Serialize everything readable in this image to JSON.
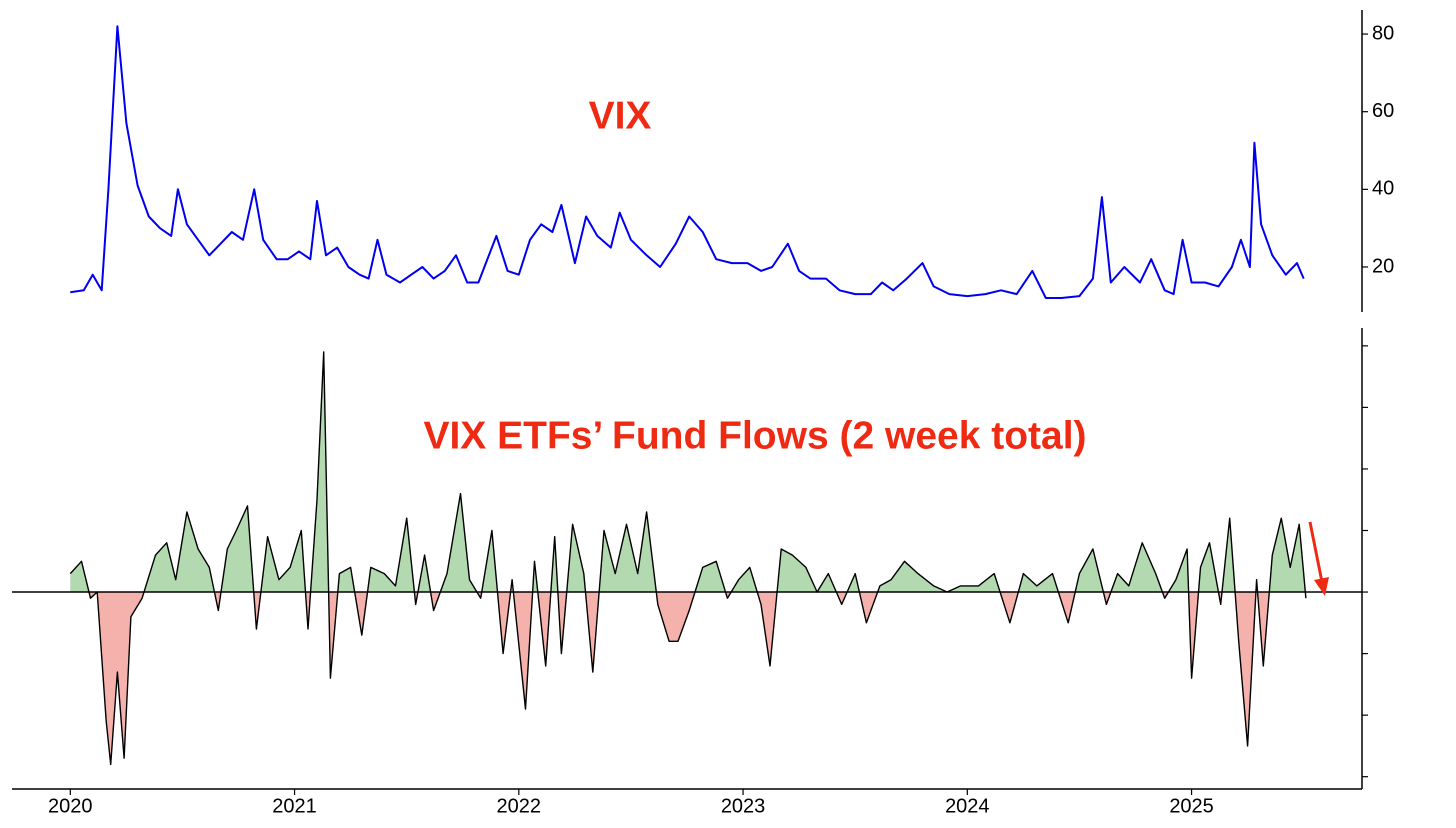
{
  "chart_data": [
    {
      "type": "line",
      "title": "VIX",
      "color": "#0000ee",
      "y_axis_side": "right",
      "xlim": [
        2019.74,
        2025.76
      ],
      "ylim": [
        8.4,
        86.2
      ],
      "yticks": [
        20,
        40,
        60,
        80
      ],
      "x": [
        2020.0,
        2020.06,
        2020.1,
        2020.14,
        2020.17,
        2020.21,
        2020.25,
        2020.3,
        2020.35,
        2020.4,
        2020.45,
        2020.48,
        2020.52,
        2020.57,
        2020.62,
        2020.67,
        2020.72,
        2020.77,
        2020.82,
        2020.86,
        2020.92,
        2020.97,
        2021.02,
        2021.07,
        2021.1,
        2021.14,
        2021.19,
        2021.24,
        2021.29,
        2021.33,
        2021.37,
        2021.41,
        2021.47,
        2021.52,
        2021.57,
        2021.62,
        2021.67,
        2021.72,
        2021.77,
        2021.82,
        2021.9,
        2021.95,
        2022.0,
        2022.05,
        2022.1,
        2022.15,
        2022.19,
        2022.25,
        2022.3,
        2022.35,
        2022.41,
        2022.45,
        2022.5,
        2022.57,
        2022.63,
        2022.7,
        2022.76,
        2022.82,
        2022.88,
        2022.95,
        2023.02,
        2023.08,
        2023.13,
        2023.2,
        2023.25,
        2023.3,
        2023.37,
        2023.43,
        2023.5,
        2023.57,
        2023.62,
        2023.67,
        2023.73,
        2023.8,
        2023.85,
        2023.92,
        2024.0,
        2024.08,
        2024.15,
        2024.22,
        2024.29,
        2024.35,
        2024.42,
        2024.5,
        2024.56,
        2024.6,
        2024.64,
        2024.7,
        2024.77,
        2024.82,
        2024.88,
        2024.92,
        2024.96,
        2025.0,
        2025.06,
        2025.12,
        2025.18,
        2025.22,
        2025.26,
        2025.28,
        2025.31,
        2025.36,
        2025.42,
        2025.47,
        2025.5
      ],
      "values": [
        13.5,
        14,
        18,
        14,
        40,
        82,
        57,
        41,
        33,
        30,
        28,
        40,
        31,
        27,
        23,
        26,
        29,
        27,
        40,
        27,
        22,
        22,
        24,
        22,
        37,
        23,
        25,
        20,
        18,
        17,
        27,
        18,
        16,
        18,
        20,
        17,
        19,
        23,
        16,
        16,
        28,
        19,
        18,
        27,
        31,
        29,
        36,
        21,
        33,
        28,
        25,
        34,
        27,
        23,
        20,
        26,
        33,
        29,
        22,
        21,
        21,
        19,
        20,
        26,
        19,
        17,
        17,
        14,
        13,
        13,
        16,
        14,
        17,
        21,
        15,
        13,
        12.5,
        13,
        14,
        13,
        19,
        12,
        12,
        12.5,
        17,
        38,
        16,
        20,
        16,
        22,
        14,
        13,
        27,
        16,
        16,
        15,
        20,
        27,
        20,
        52,
        31,
        23,
        18,
        21,
        17
      ]
    },
    {
      "type": "area",
      "title": "VIX ETFs’ Fund Flows (2 week total)",
      "positive_color": "#b3d9b0",
      "negative_color": "#f5b1ac",
      "line_color": "#000000",
      "tick_labels": false,
      "arrow_color": "#ee2a12",
      "xlim": [
        2019.74,
        2025.76
      ],
      "ylim": [
        -3.2,
        4.29
      ],
      "yticks": [
        -3,
        -2,
        -1,
        0,
        1,
        2,
        3,
        4
      ],
      "xticks": [
        2020,
        2021,
        2022,
        2023,
        2024,
        2025
      ],
      "x": [
        2020.0,
        2020.05,
        2020.09,
        2020.12,
        2020.16,
        2020.18,
        2020.21,
        2020.24,
        2020.27,
        2020.32,
        2020.38,
        2020.43,
        2020.47,
        2020.52,
        2020.57,
        2020.62,
        2020.66,
        2020.7,
        2020.74,
        2020.79,
        2020.83,
        2020.88,
        2020.93,
        2020.98,
        2021.03,
        2021.06,
        2021.1,
        2021.13,
        2021.16,
        2021.2,
        2021.25,
        2021.3,
        2021.34,
        2021.4,
        2021.45,
        2021.5,
        2021.54,
        2021.58,
        2021.62,
        2021.68,
        2021.74,
        2021.78,
        2021.83,
        2021.88,
        2021.93,
        2021.97,
        2022.03,
        2022.07,
        2022.12,
        2022.16,
        2022.19,
        2022.24,
        2022.29,
        2022.33,
        2022.38,
        2022.43,
        2022.48,
        2022.53,
        2022.57,
        2022.62,
        2022.67,
        2022.71,
        2022.76,
        2022.82,
        2022.88,
        2022.93,
        2022.98,
        2023.03,
        2023.08,
        2023.12,
        2023.17,
        2023.22,
        2023.28,
        2023.33,
        2023.38,
        2023.44,
        2023.5,
        2023.55,
        2023.61,
        2023.66,
        2023.72,
        2023.78,
        2023.85,
        2023.91,
        2023.97,
        2024.05,
        2024.12,
        2024.19,
        2024.25,
        2024.31,
        2024.38,
        2024.45,
        2024.5,
        2024.56,
        2024.62,
        2024.67,
        2024.72,
        2024.78,
        2024.84,
        2024.88,
        2024.93,
        2024.98,
        2025.0,
        2025.04,
        2025.08,
        2025.13,
        2025.17,
        2025.21,
        2025.25,
        2025.29,
        2025.32,
        2025.36,
        2025.4,
        2025.44,
        2025.48,
        2025.51
      ],
      "values": [
        0.3,
        0.5,
        -0.1,
        0,
        -2.1,
        -2.8,
        -1.3,
        -2.7,
        -0.4,
        -0.1,
        0.6,
        0.8,
        0.2,
        1.3,
        0.7,
        0.4,
        -0.3,
        0.7,
        1.0,
        1.4,
        -0.6,
        0.9,
        0.2,
        0.4,
        1.0,
        -0.6,
        1.5,
        3.9,
        -1.4,
        0.3,
        0.4,
        -0.7,
        0.4,
        0.3,
        0.1,
        1.2,
        -0.2,
        0.6,
        -0.3,
        0.3,
        1.6,
        0.2,
        -0.1,
        1.0,
        -1.0,
        0.2,
        -1.9,
        0.5,
        -1.2,
        0.9,
        -1.0,
        1.1,
        0.3,
        -1.3,
        1.0,
        0.3,
        1.1,
        0.3,
        1.3,
        -0.2,
        -0.8,
        -0.8,
        -0.3,
        0.4,
        0.5,
        -0.1,
        0.2,
        0.4,
        -0.2,
        -1.2,
        0.7,
        0.6,
        0.4,
        0.0,
        0.3,
        -0.2,
        0.3,
        -0.5,
        0.1,
        0.2,
        0.5,
        0.3,
        0.1,
        0.0,
        0.1,
        0.1,
        0.3,
        -0.5,
        0.3,
        0.1,
        0.3,
        -0.5,
        0.3,
        0.7,
        -0.2,
        0.3,
        0.1,
        0.8,
        0.3,
        -0.1,
        0.2,
        0.7,
        -1.4,
        0.4,
        0.8,
        -0.2,
        1.2,
        -0.8,
        -2.5,
        0.2,
        -1.2,
        0.6,
        1.2,
        0.4,
        1.1,
        -0.1
      ]
    }
  ]
}
